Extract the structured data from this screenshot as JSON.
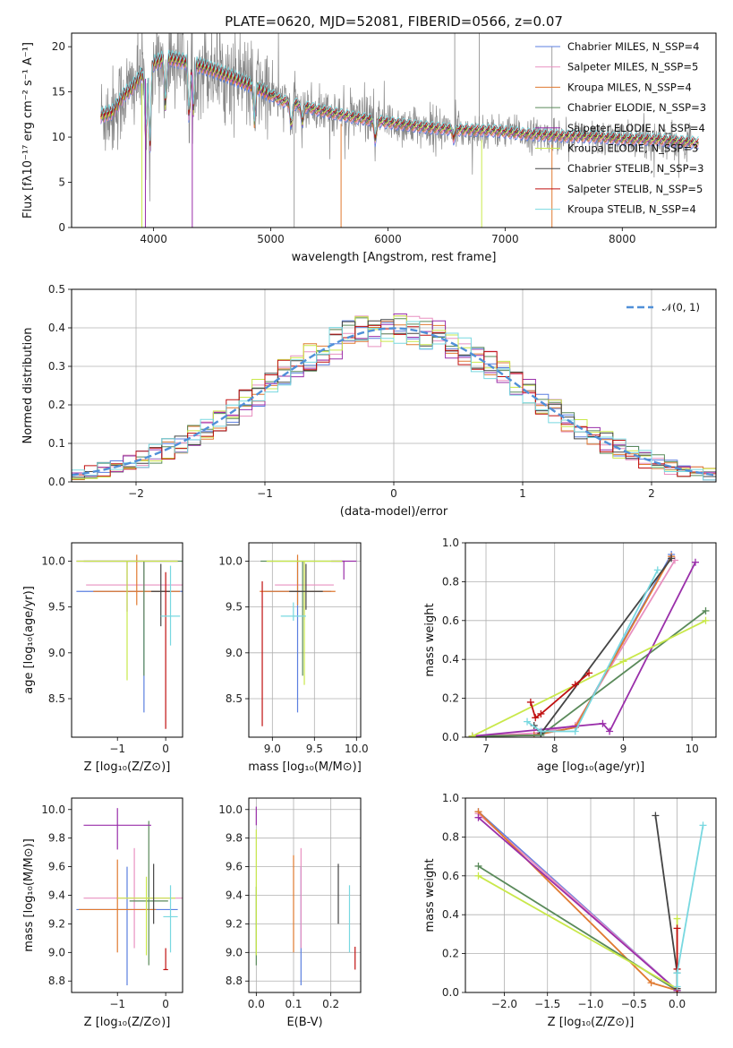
{
  "figure": {
    "title": "PLATE=0620, MJD=52081, FIBERID=0566, z=0.07"
  },
  "colors": {
    "Chabrier MILES": "#5b7fe0",
    "Salpeter MILES": "#e890c0",
    "Kroupa MILES": "#e07a30",
    "Chabrier ELODIE": "#5a8a5a",
    "Salpeter ELODIE": "#9a2faa",
    "Kroupa ELODIE": "#c9e84a",
    "Chabrier STELIB": "#444444",
    "Salpeter STELIB": "#c01010",
    "Kroupa STELIB": "#78d8e0",
    "data": "#888888",
    "normal": "#5090d8"
  },
  "chart_data": [
    {
      "type": "line",
      "name": "spectrum",
      "xlabel": "wavelength [Angstrom, rest frame]",
      "ylabel": "Flux [fλ10⁻¹⁷ erg cm⁻² s⁻¹ A⁻¹]",
      "xlim": [
        3300,
        8800
      ],
      "ylim": [
        0,
        21.5
      ],
      "xticks": [
        4000,
        5000,
        6000,
        7000,
        8000
      ],
      "yticks": [
        0,
        5,
        10,
        15,
        20
      ],
      "legend_position": "top-right",
      "legend": [
        "Chabrier MILES, N_SSP=4",
        "Salpeter MILES, N_SSP=5",
        "Kroupa MILES, N_SSP=4",
        "Chabrier ELODIE, N_SSP=3",
        "Salpeter ELODIE, N_SSP=4",
        "Kroupa ELODIE, N_SSP=3",
        "Chabrier STELIB, N_SSP=3",
        "Salpeter STELIB, N_SSP=5",
        "Kroupa STELIB, N_SSP=4"
      ],
      "continuum": {
        "x": [
          3550,
          3650,
          3800,
          3950,
          4100,
          4300,
          4500,
          4700,
          4900,
          5100,
          5400,
          5700,
          6000,
          6300,
          6600,
          6900,
          7200,
          7500,
          7800,
          8000,
          8300,
          8700
        ],
        "y": [
          14.5,
          13.8,
          15.2,
          17.8,
          18.8,
          18.3,
          17.5,
          16.5,
          15.4,
          14.0,
          13.0,
          12.2,
          11.6,
          11.1,
          10.8,
          10.7,
          10.3,
          10.1,
          10.0,
          9.8,
          9.7,
          9.3
        ]
      }
    },
    {
      "type": "line",
      "name": "residuals",
      "xlabel": "(data-model)/error",
      "ylabel": "Normed distribution",
      "xlim": [
        -2.5,
        2.5
      ],
      "ylim": [
        0,
        0.5
      ],
      "xticks": [
        -2,
        -1,
        0,
        1,
        2
      ],
      "yticks": [
        0.0,
        0.1,
        0.2,
        0.3,
        0.4,
        0.5
      ],
      "legend": [
        "𝒩(0, 1)"
      ],
      "legend_position": "top-right",
      "bin_width": 0.1,
      "bins_from": -2.6
    },
    {
      "type": "scatter",
      "name": "age_vs_Z",
      "xlabel": "Z [log₁₀(Z/Z⊙)]",
      "ylabel": "age  [log₁₀(age/yr)]",
      "xlim": [
        -1.95,
        0.35
      ],
      "ylim": [
        8.08,
        10.2
      ],
      "xticks": [
        -1,
        0
      ],
      "yticks": [
        8.5,
        9.0,
        9.5,
        10.0
      ],
      "points": [
        {
          "s": "Chabrier MILES",
          "x": -0.45,
          "y": 9.67,
          "xerr": 1.4,
          "yerr": [
            1.32,
            0.33
          ]
        },
        {
          "s": "Salpeter MILES",
          "x": -0.45,
          "y": 9.74,
          "xerr": 1.2,
          "yerr": [
            0.38,
            0.26
          ]
        },
        {
          "s": "Kroupa MILES",
          "x": -0.6,
          "y": 9.67,
          "xerr": 0.9,
          "yerr": [
            0.15,
            0.4
          ]
        },
        {
          "s": "Chabrier ELODIE",
          "x": -0.45,
          "y": 10.0,
          "xerr": 1.25,
          "yerr": [
            1.25,
            0.0
          ]
        },
        {
          "s": "Salpeter ELODIE",
          "x": -0.8,
          "y": 10.0,
          "xerr": 1.05,
          "yerr": [
            0.55,
            0.0
          ]
        },
        {
          "s": "Kroupa ELODIE",
          "x": -0.8,
          "y": 10.0,
          "xerr": 1.05,
          "yerr": [
            1.3,
            0.0
          ]
        },
        {
          "s": "Chabrier STELIB",
          "x": -0.1,
          "y": 9.67,
          "xerr": 0.2,
          "yerr": [
            0.38,
            0.3
          ]
        },
        {
          "s": "Salpeter STELIB",
          "x": 0.0,
          "y": 9.65,
          "xerr": 0.0,
          "yerr": [
            1.48,
            0.23
          ]
        },
        {
          "s": "Kroupa STELIB",
          "x": 0.1,
          "y": 9.4,
          "xerr": 0.2,
          "yerr": [
            0.32,
            0.55
          ]
        }
      ]
    },
    {
      "type": "scatter",
      "name": "age_vs_mass",
      "xlabel": "mass [log₁₀(M/M⊙)]",
      "ylabel": "",
      "xlim": [
        8.72,
        10.05
      ],
      "ylim": [
        8.08,
        10.2
      ],
      "xticks": [
        9.0,
        9.5,
        10.0
      ],
      "yticks": [
        8.5,
        9.0,
        9.5,
        10.0
      ],
      "points": [
        {
          "s": "Chabrier MILES",
          "x": 9.3,
          "y": 9.67,
          "xerr": 0.4,
          "yerr": [
            1.32,
            0.33
          ]
        },
        {
          "s": "Salpeter MILES",
          "x": 9.38,
          "y": 9.74,
          "xerr": 0.35,
          "yerr": [
            0.38,
            0.26
          ]
        },
        {
          "s": "Kroupa MILES",
          "x": 9.3,
          "y": 9.67,
          "xerr": 0.45,
          "yerr": [
            0.15,
            0.4
          ]
        },
        {
          "s": "Chabrier ELODIE",
          "x": 9.36,
          "y": 10.0,
          "xerr": 0.5,
          "yerr": [
            1.25,
            0.0
          ]
        },
        {
          "s": "Salpeter ELODIE",
          "x": 9.85,
          "y": 10.0,
          "xerr": 0.15,
          "yerr": [
            0.2,
            0.0
          ]
        },
        {
          "s": "Kroupa ELODIE",
          "x": 9.38,
          "y": 10.0,
          "xerr": 0.45,
          "yerr": [
            1.35,
            0.0
          ]
        },
        {
          "s": "Chabrier STELIB",
          "x": 9.4,
          "y": 9.67,
          "xerr": 0.2,
          "yerr": [
            0.2,
            0.3
          ]
        },
        {
          "s": "Salpeter STELIB",
          "x": 8.88,
          "y": 9.0,
          "xerr": 0.0,
          "yerr": [
            0.8,
            0.78
          ]
        },
        {
          "s": "Kroupa STELIB",
          "x": 9.25,
          "y": 9.4,
          "xerr": 0.15,
          "yerr": [
            0.05,
            0.15
          ]
        }
      ]
    },
    {
      "type": "line",
      "name": "mass_weight_vs_age",
      "xlabel": "age  [log₁₀(age/yr)]",
      "ylabel": "mass weight",
      "xlim": [
        6.7,
        10.35
      ],
      "ylim": [
        0,
        1.0
      ],
      "xticks": [
        7,
        8,
        9,
        10
      ],
      "yticks": [
        0.0,
        0.2,
        0.4,
        0.6,
        0.8,
        1.0
      ],
      "series": [
        {
          "s": "Chabrier MILES",
          "x": [
            6.8,
            7.7,
            8.3,
            9.7
          ],
          "y": [
            0.005,
            0.01,
            0.05,
            0.94
          ]
        },
        {
          "s": "Salpeter MILES",
          "x": [
            6.8,
            7.7,
            8.3,
            9.75
          ],
          "y": [
            0.005,
            0.02,
            0.06,
            0.91
          ]
        },
        {
          "s": "Kroupa MILES",
          "x": [
            6.8,
            7.7,
            8.3,
            9.7
          ],
          "y": [
            0.005,
            0.01,
            0.05,
            0.93
          ]
        },
        {
          "s": "Chabrier ELODIE",
          "x": [
            6.8,
            7.8,
            10.2
          ],
          "y": [
            0.005,
            0.01,
            0.65
          ]
        },
        {
          "s": "Salpeter ELODIE",
          "x": [
            6.8,
            8.7,
            8.8,
            10.05
          ],
          "y": [
            0.005,
            0.07,
            0.03,
            0.9
          ]
        },
        {
          "s": "Kroupa ELODIE",
          "x": [
            6.8,
            9.0,
            10.2
          ],
          "y": [
            0.005,
            0.39,
            0.6
          ]
        },
        {
          "s": "Chabrier STELIB",
          "x": [
            7.7,
            7.8,
            9.7
          ],
          "y": [
            0.06,
            0.02,
            0.92
          ]
        },
        {
          "s": "Salpeter STELIB",
          "x": [
            7.65,
            7.72,
            7.8,
            8.3,
            8.5
          ],
          "y": [
            0.18,
            0.1,
            0.12,
            0.27,
            0.33
          ]
        },
        {
          "s": "Kroupa STELIB",
          "x": [
            7.6,
            7.8,
            8.3,
            9.5
          ],
          "y": [
            0.08,
            0.03,
            0.03,
            0.86
          ]
        }
      ]
    },
    {
      "type": "scatter",
      "name": "mass_vs_Z",
      "xlabel": "Z [log₁₀(Z/Z⊙)]",
      "ylabel": "mass [log₁₀(M/M⊙)]",
      "xlim": [
        -1.95,
        0.35
      ],
      "ylim": [
        8.72,
        10.08
      ],
      "xticks": [
        -1,
        0
      ],
      "yticks": [
        8.8,
        9.0,
        9.2,
        9.4,
        9.6,
        9.8,
        10.0
      ],
      "points": [
        {
          "s": "Chabrier MILES",
          "x": -0.8,
          "y": 9.3,
          "xerr": 1.05,
          "yerr": [
            0.53,
            0.3
          ]
        },
        {
          "s": "Salpeter MILES",
          "x": -0.65,
          "y": 9.38,
          "xerr": 1.05,
          "yerr": [
            0.35,
            0.35
          ]
        },
        {
          "s": "Kroupa MILES",
          "x": -1.0,
          "y": 9.3,
          "xerr": 0.8,
          "yerr": [
            0.3,
            0.35
          ]
        },
        {
          "s": "Chabrier ELODIE",
          "x": -0.35,
          "y": 9.36,
          "xerr": 0.4,
          "yerr": [
            0.45,
            0.56
          ]
        },
        {
          "s": "Salpeter ELODIE",
          "x": -1.0,
          "y": 9.89,
          "xerr": 0.7,
          "yerr": [
            0.17,
            0.12
          ]
        },
        {
          "s": "Kroupa ELODIE",
          "x": -0.4,
          "y": 9.38,
          "xerr": 0.6,
          "yerr": [
            0.4,
            0.15
          ]
        },
        {
          "s": "Chabrier STELIB",
          "x": -0.25,
          "y": 9.4,
          "xerr": 0.0,
          "yerr": [
            0.2,
            0.22
          ]
        },
        {
          "s": "Salpeter STELIB",
          "x": 0.0,
          "y": 8.88,
          "xerr": 0.05,
          "yerr": [
            0.0,
            0.15
          ]
        },
        {
          "s": "Kroupa STELIB",
          "x": 0.1,
          "y": 9.25,
          "xerr": 0.15,
          "yerr": [
            0.25,
            0.22
          ]
        }
      ]
    },
    {
      "type": "scatter",
      "name": "mass_vs_EBV",
      "xlabel": "E(B-V)",
      "ylabel": "",
      "xlim": [
        -0.02,
        0.28
      ],
      "ylim": [
        8.72,
        10.08
      ],
      "xticks": [
        0.0,
        0.1,
        0.2
      ],
      "yticks": [
        8.8,
        9.0,
        9.2,
        9.4,
        9.6,
        9.8,
        10.0
      ],
      "points": [
        {
          "s": "Chabrier MILES",
          "x": 0.12,
          "y": 9.3,
          "yerr": [
            0.53,
            0.3
          ]
        },
        {
          "s": "Salpeter MILES",
          "x": 0.12,
          "y": 9.38,
          "yerr": [
            0.35,
            0.35
          ]
        },
        {
          "s": "Kroupa MILES",
          "x": 0.1,
          "y": 9.3,
          "yerr": [
            0.3,
            0.38
          ]
        },
        {
          "s": "Chabrier ELODIE",
          "x": 0.0,
          "y": 9.36,
          "yerr": [
            0.45,
            0.1
          ]
        },
        {
          "s": "Salpeter ELODIE",
          "x": 0.0,
          "y": 9.89,
          "yerr": [
            0.0,
            0.13
          ]
        },
        {
          "s": "Kroupa ELODIE",
          "x": 0.0,
          "y": 9.38,
          "yerr": [
            0.4,
            0.48
          ]
        },
        {
          "s": "Chabrier STELIB",
          "x": 0.22,
          "y": 9.4,
          "yerr": [
            0.2,
            0.22
          ]
        },
        {
          "s": "Salpeter STELIB",
          "x": 0.265,
          "y": 8.95,
          "yerr": [
            0.07,
            0.09
          ]
        },
        {
          "s": "Kroupa STELIB",
          "x": 0.25,
          "y": 9.25,
          "yerr": [
            0.25,
            0.22
          ]
        }
      ]
    },
    {
      "type": "line",
      "name": "mass_weight_vs_Z",
      "xlabel": "Z [log₁₀(Z/Z⊙)]",
      "ylabel": "mass weight",
      "xlim": [
        -2.45,
        0.45
      ],
      "ylim": [
        0,
        1.0
      ],
      "xticks": [
        -2.0,
        -1.5,
        -1.0,
        -0.5,
        0.0
      ],
      "yticks": [
        0.0,
        0.2,
        0.4,
        0.6,
        0.8,
        1.0
      ],
      "series": [
        {
          "s": "Chabrier MILES",
          "x": [
            -2.3,
            0.0
          ],
          "y": [
            0.93,
            0.01
          ]
        },
        {
          "s": "Salpeter MILES",
          "x": [
            -2.3,
            0.0
          ],
          "y": [
            0.92,
            0.01
          ]
        },
        {
          "s": "Kroupa MILES",
          "x": [
            -2.3,
            -0.3,
            0.0
          ],
          "y": [
            0.93,
            0.05,
            0.01
          ]
        },
        {
          "s": "Chabrier ELODIE",
          "x": [
            -2.3,
            0.0
          ],
          "y": [
            0.65,
            0.01
          ]
        },
        {
          "s": "Salpeter ELODIE",
          "x": [
            -2.3,
            0.0
          ],
          "y": [
            0.9,
            0.01
          ]
        },
        {
          "s": "Kroupa ELODIE",
          "x": [
            -2.3,
            0.0,
            0.0
          ],
          "y": [
            0.6,
            0.02,
            0.38
          ]
        },
        {
          "s": "Chabrier STELIB",
          "x": [
            -0.25,
            0.0,
            0.0
          ],
          "y": [
            0.91,
            0.1,
            0.02
          ]
        },
        {
          "s": "Salpeter STELIB",
          "x": [
            0.0,
            0.0,
            0.0
          ],
          "y": [
            0.33,
            0.12,
            0.0
          ]
        },
        {
          "s": "Kroupa STELIB",
          "x": [
            0.0,
            0.0,
            0.3
          ],
          "y": [
            0.03,
            0.1,
            0.86
          ]
        }
      ]
    }
  ]
}
